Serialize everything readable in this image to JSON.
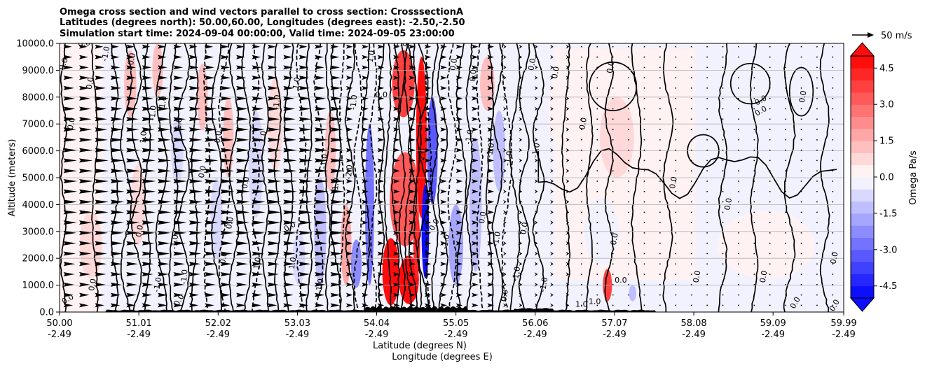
{
  "chart_data": {
    "type": "heatmap",
    "title_lines": [
      "Omega cross section and wind vectors parallel to cross section: CrosssectionA",
      "Latitudes (degrees north): 50.00,60.00, Longitudes (degrees east): -2.50,-2.50",
      "Simulation start time: 2024-09-04 00:00:00, Valid time: 2024-09-05 23:00:00"
    ],
    "ylabel": "Altitude (meters)",
    "xlabel_lines": [
      "Latitude (degrees N)",
      "Longitude (degrees E)"
    ],
    "xlim": [
      50.0,
      59.99
    ],
    "ylim": [
      0,
      10000
    ],
    "y_ticks": [
      {
        "value": 0,
        "label": "0.0"
      },
      {
        "value": 1000,
        "label": "1000.0"
      },
      {
        "value": 2000,
        "label": "2000.0"
      },
      {
        "value": 3000,
        "label": "3000.0"
      },
      {
        "value": 4000,
        "label": "4000.0"
      },
      {
        "value": 5000,
        "label": "5000.0"
      },
      {
        "value": 6000,
        "label": "6000.0"
      },
      {
        "value": 7000,
        "label": "7000.0"
      },
      {
        "value": 8000,
        "label": "8000.0"
      },
      {
        "value": 9000,
        "label": "9000.0"
      },
      {
        "value": 10000,
        "label": "10000.0"
      }
    ],
    "x_ticks": [
      {
        "value": 50.0,
        "lat": "50.00",
        "lon": "-2.49"
      },
      {
        "value": 51.01,
        "lat": "51.01",
        "lon": "-2.49"
      },
      {
        "value": 52.02,
        "lat": "52.02",
        "lon": "-2.49"
      },
      {
        "value": 53.03,
        "lat": "53.03",
        "lon": "-2.49"
      },
      {
        "value": 54.04,
        "lat": "54.04",
        "lon": "-2.49"
      },
      {
        "value": 55.05,
        "lat": "55.05",
        "lon": "-2.49"
      },
      {
        "value": 56.06,
        "lat": "56.06",
        "lon": "-2.49"
      },
      {
        "value": 57.07,
        "lat": "57.07",
        "lon": "-2.49"
      },
      {
        "value": 58.08,
        "lat": "58.08",
        "lon": "-2.49"
      },
      {
        "value": 59.09,
        "lat": "59.09",
        "lon": "-2.49"
      },
      {
        "value": 59.99,
        "lat": "59.99",
        "lon": "-2.49"
      }
    ],
    "horizontal_grid": true,
    "colorbar": {
      "label": "Omega Pa/s",
      "range": [
        -5.0,
        5.0
      ],
      "levels": 20,
      "extend": "both",
      "ticks": [
        "-4.5",
        "-3.0",
        "-1.5",
        "0.0",
        "1.5",
        "3.0",
        "4.5"
      ],
      "tick_values": [
        -4.5,
        -3.0,
        -1.5,
        0.0,
        1.5,
        3.0,
        4.5
      ]
    },
    "quiver_key": {
      "label": "50 m/s",
      "speed": 50
    },
    "omega_blobs": [
      {
        "lat": 54.45,
        "alt": 1200,
        "w": 0.22,
        "h": 1800,
        "v": 5.0
      },
      {
        "lat": 54.22,
        "alt": 1500,
        "w": 0.18,
        "h": 2500,
        "v": 4.5
      },
      {
        "lat": 54.4,
        "alt": 4200,
        "w": 0.35,
        "h": 3500,
        "v": 3.2
      },
      {
        "lat": 54.38,
        "alt": 8500,
        "w": 0.25,
        "h": 2500,
        "v": 3.5
      },
      {
        "lat": 54.61,
        "alt": 6500,
        "w": 0.1,
        "h": 6000,
        "v": 4.5
      },
      {
        "lat": 54.55,
        "alt": 2500,
        "w": 0.05,
        "h": 2500,
        "v": 4.0
      },
      {
        "lat": 54.66,
        "alt": 3000,
        "w": 0.06,
        "h": 3500,
        "v": -5.0
      },
      {
        "lat": 54.75,
        "alt": 6000,
        "w": 0.1,
        "h": 4000,
        "v": -3.5
      },
      {
        "lat": 53.95,
        "alt": 4000,
        "w": 0.08,
        "h": 6000,
        "v": -3.0
      },
      {
        "lat": 53.78,
        "alt": 1800,
        "w": 0.1,
        "h": 1800,
        "v": -2.2
      },
      {
        "lat": 53.65,
        "alt": 2500,
        "w": 0.1,
        "h": 3000,
        "v": 1.8
      },
      {
        "lat": 53.32,
        "alt": 3000,
        "w": 0.12,
        "h": 4000,
        "v": -1.4
      },
      {
        "lat": 53.45,
        "alt": 6000,
        "w": 0.1,
        "h": 3000,
        "v": 1.2
      },
      {
        "lat": 55.05,
        "alt": 2500,
        "w": 0.15,
        "h": 3000,
        "v": -1.8
      },
      {
        "lat": 55.3,
        "alt": 4000,
        "w": 0.12,
        "h": 5000,
        "v": -1.2
      },
      {
        "lat": 55.6,
        "alt": 6000,
        "w": 0.12,
        "h": 3000,
        "v": -1.1
      },
      {
        "lat": 55.45,
        "alt": 8500,
        "w": 0.15,
        "h": 2000,
        "v": 1.3
      },
      {
        "lat": 50.9,
        "alt": 8500,
        "w": 0.12,
        "h": 2500,
        "v": 1.4
      },
      {
        "lat": 51.0,
        "alt": 4000,
        "w": 0.15,
        "h": 3000,
        "v": 0.8
      },
      {
        "lat": 51.25,
        "alt": 9000,
        "w": 0.1,
        "h": 2000,
        "v": 1.2
      },
      {
        "lat": 51.5,
        "alt": 6000,
        "w": 0.12,
        "h": 2500,
        "v": -0.9
      },
      {
        "lat": 51.82,
        "alt": 8000,
        "w": 0.1,
        "h": 2500,
        "v": 1.2
      },
      {
        "lat": 52.0,
        "alt": 3500,
        "w": 0.12,
        "h": 3000,
        "v": -0.9
      },
      {
        "lat": 52.15,
        "alt": 6500,
        "w": 0.1,
        "h": 3000,
        "v": 1.0
      },
      {
        "lat": 52.5,
        "alt": 5500,
        "w": 0.15,
        "h": 4000,
        "v": -1.0
      },
      {
        "lat": 52.75,
        "alt": 7000,
        "w": 0.15,
        "h": 3500,
        "v": 0.9
      },
      {
        "lat": 53.05,
        "alt": 2000,
        "w": 0.12,
        "h": 2000,
        "v": -0.8
      },
      {
        "lat": 50.4,
        "alt": 2500,
        "w": 0.25,
        "h": 2500,
        "v": 0.5
      },
      {
        "lat": 56.4,
        "alt": 7500,
        "w": 0.3,
        "h": 3000,
        "v": 0.4
      },
      {
        "lat": 57.1,
        "alt": 6500,
        "w": 0.4,
        "h": 3000,
        "v": 0.5
      },
      {
        "lat": 57.7,
        "alt": 4500,
        "w": 0.25,
        "h": 5000,
        "v": 0.4
      },
      {
        "lat": 56.98,
        "alt": 1000,
        "w": 0.08,
        "h": 1200,
        "v": 3.5
      },
      {
        "lat": 57.3,
        "alt": 700,
        "w": 0.06,
        "h": 600,
        "v": -1.5
      },
      {
        "lat": 58.5,
        "alt": 8000,
        "w": 0.8,
        "h": 3000,
        "v": -0.3
      },
      {
        "lat": 59.4,
        "alt": 6500,
        "w": 0.6,
        "h": 3000,
        "v": -0.3
      },
      {
        "lat": 59.0,
        "alt": 2500,
        "w": 1.2,
        "h": 2500,
        "v": 0.2
      },
      {
        "lat": 56.9,
        "alt": 3000,
        "w": 0.4,
        "h": 2500,
        "v": -0.4
      }
    ],
    "contours": [
      {
        "lat": 50.05,
        "dashed": false
      },
      {
        "lat": 50.45,
        "dashed": false
      },
      {
        "lat": 50.7,
        "dashed": false
      },
      {
        "lat": 50.85,
        "dashed": false
      },
      {
        "lat": 50.98,
        "dashed": false
      },
      {
        "lat": 51.12,
        "dashed": false
      },
      {
        "lat": 51.3,
        "dashed": false
      },
      {
        "lat": 51.45,
        "dashed": false
      },
      {
        "lat": 51.58,
        "dashed": false
      },
      {
        "lat": 51.72,
        "dashed": false
      },
      {
        "lat": 51.88,
        "dashed": true
      },
      {
        "lat": 52.0,
        "dashed": false
      },
      {
        "lat": 52.1,
        "dashed": true
      },
      {
        "lat": 52.22,
        "dashed": false
      },
      {
        "lat": 52.38,
        "dashed": false
      },
      {
        "lat": 52.5,
        "dashed": true
      },
      {
        "lat": 52.62,
        "dashed": false
      },
      {
        "lat": 52.78,
        "dashed": false
      },
      {
        "lat": 52.92,
        "dashed": false
      },
      {
        "lat": 53.08,
        "dashed": true
      },
      {
        "lat": 53.18,
        "dashed": false
      },
      {
        "lat": 53.3,
        "dashed": true
      },
      {
        "lat": 53.42,
        "dashed": false
      },
      {
        "lat": 53.52,
        "dashed": false
      },
      {
        "lat": 53.6,
        "dashed": true
      },
      {
        "lat": 53.7,
        "dashed": false
      },
      {
        "lat": 53.8,
        "dashed": true
      },
      {
        "lat": 53.9,
        "dashed": false
      },
      {
        "lat": 54.0,
        "dashed": true
      },
      {
        "lat": 54.1,
        "dashed": false
      },
      {
        "lat": 54.18,
        "dashed": false
      },
      {
        "lat": 54.28,
        "dashed": false
      },
      {
        "lat": 54.36,
        "dashed": false
      },
      {
        "lat": 54.44,
        "dashed": false
      },
      {
        "lat": 54.5,
        "dashed": false
      },
      {
        "lat": 54.56,
        "dashed": false
      },
      {
        "lat": 54.63,
        "dashed": false
      },
      {
        "lat": 54.7,
        "dashed": true
      },
      {
        "lat": 54.78,
        "dashed": false
      },
      {
        "lat": 54.88,
        "dashed": false
      },
      {
        "lat": 55.0,
        "dashed": true
      },
      {
        "lat": 55.12,
        "dashed": false
      },
      {
        "lat": 55.22,
        "dashed": false
      },
      {
        "lat": 55.35,
        "dashed": true
      },
      {
        "lat": 55.48,
        "dashed": false
      },
      {
        "lat": 55.58,
        "dashed": false
      },
      {
        "lat": 55.7,
        "dashed": true
      },
      {
        "lat": 55.8,
        "dashed": false
      },
      {
        "lat": 55.92,
        "dashed": false
      },
      {
        "lat": 56.1,
        "dashed": false
      },
      {
        "lat": 56.45,
        "dashed": false
      },
      {
        "lat": 56.75,
        "dashed": false
      },
      {
        "lat": 57.0,
        "dashed": false
      },
      {
        "lat": 57.35,
        "dashed": false
      },
      {
        "lat": 57.75,
        "dashed": false
      },
      {
        "lat": 58.45,
        "dashed": false
      },
      {
        "lat": 58.85,
        "dashed": false
      },
      {
        "lat": 59.3,
        "dashed": false
      },
      {
        "lat": 59.75,
        "dashed": false
      }
    ],
    "contour_labels": [
      {
        "lat": 50.08,
        "alt": 9200,
        "text": "0.0",
        "rot": -70
      },
      {
        "lat": 50.18,
        "alt": 7000,
        "text": "0.0",
        "rot": -80
      },
      {
        "lat": 50.12,
        "alt": 400,
        "text": "0.0",
        "rot": -30
      },
      {
        "lat": 50.32,
        "alt": 9900,
        "text": "0.0",
        "rot": -10
      },
      {
        "lat": 50.42,
        "alt": 8500,
        "text": "0.0",
        "rot": -80
      },
      {
        "lat": 50.62,
        "alt": 9600,
        "text": "-1.0",
        "rot": -80
      },
      {
        "lat": 50.95,
        "alt": 9400,
        "text": "0.0",
        "rot": -80
      },
      {
        "lat": 51.22,
        "alt": 7400,
        "text": "-1.0",
        "rot": -85
      },
      {
        "lat": 51.1,
        "alt": 6500,
        "text": "1.0",
        "rot": -85
      },
      {
        "lat": 51.35,
        "alt": 7800,
        "text": "1.0",
        "rot": -80
      },
      {
        "lat": 51.55,
        "alt": 7000,
        "text": "1.0",
        "rot": -85
      },
      {
        "lat": 51.85,
        "alt": 5200,
        "text": "0.0",
        "rot": -80
      },
      {
        "lat": 52.05,
        "alt": 6500,
        "text": "0.0",
        "rot": -80
      },
      {
        "lat": 51.62,
        "alt": 1300,
        "text": "-1.0",
        "rot": -85
      },
      {
        "lat": 51.28,
        "alt": 1000,
        "text": "-1.0",
        "rot": -80
      },
      {
        "lat": 51.5,
        "alt": 2600,
        "text": "-1.0",
        "rot": -85
      },
      {
        "lat": 51.05,
        "alt": 3000,
        "text": "0.0",
        "rot": -80
      },
      {
        "lat": 50.45,
        "alt": 1000,
        "text": "0.0",
        "rot": -80
      },
      {
        "lat": 51.55,
        "alt": 400,
        "text": "0.0",
        "rot": -60
      },
      {
        "lat": 52.2,
        "alt": 3300,
        "text": "0.0",
        "rot": -80
      },
      {
        "lat": 52.4,
        "alt": 4800,
        "text": "0.0",
        "rot": -80
      },
      {
        "lat": 52.12,
        "alt": 2000,
        "text": "0.0",
        "rot": -80
      },
      {
        "lat": 52.55,
        "alt": 1800,
        "text": "1.0",
        "rot": -80
      },
      {
        "lat": 52.62,
        "alt": 6500,
        "text": "1.0",
        "rot": -80
      },
      {
        "lat": 52.8,
        "alt": 7800,
        "text": "-1.0",
        "rot": -85
      },
      {
        "lat": 53.05,
        "alt": 8500,
        "text": "1.0",
        "rot": -80
      },
      {
        "lat": 52.95,
        "alt": 3100,
        "text": "0.0",
        "rot": -30
      },
      {
        "lat": 53.0,
        "alt": 1800,
        "text": "1.0",
        "rot": -80
      },
      {
        "lat": 53.35,
        "alt": 1000,
        "text": "1.0",
        "rot": -80
      },
      {
        "lat": 53.4,
        "alt": 5600,
        "text": "-1.0",
        "rot": -85
      },
      {
        "lat": 53.55,
        "alt": 4700,
        "text": "-1.0",
        "rot": -85
      },
      {
        "lat": 53.72,
        "alt": 5200,
        "text": "-2.0",
        "rot": -85
      },
      {
        "lat": 53.78,
        "alt": 7800,
        "text": "-1.0",
        "rot": -85
      },
      {
        "lat": 54.0,
        "alt": 9500,
        "text": "1.0",
        "rot": -80
      },
      {
        "lat": 54.1,
        "alt": 8000,
        "text": "0.0",
        "rot": 0
      },
      {
        "lat": 54.35,
        "alt": 9900,
        "text": "1.0",
        "rot": 0
      },
      {
        "lat": 54.65,
        "alt": 5800,
        "text": "-2.0",
        "rot": -80
      },
      {
        "lat": 54.75,
        "alt": 4300,
        "text": "1.0",
        "rot": -80
      },
      {
        "lat": 54.8,
        "alt": 3200,
        "text": "0.0",
        "rot": -60
      },
      {
        "lat": 54.95,
        "alt": 2600,
        "text": "-1.0",
        "rot": -80
      },
      {
        "lat": 55.05,
        "alt": 9200,
        "text": "0.0",
        "rot": -80
      },
      {
        "lat": 55.3,
        "alt": 8800,
        "text": "0.0",
        "rot": -85
      },
      {
        "lat": 55.25,
        "alt": 6500,
        "text": "-1.0",
        "rot": -80
      },
      {
        "lat": 55.42,
        "alt": 3500,
        "text": "0.0",
        "rot": -80
      },
      {
        "lat": 55.52,
        "alt": 6000,
        "text": "-1.0",
        "rot": -80
      },
      {
        "lat": 55.6,
        "alt": 2700,
        "text": "-1.0",
        "rot": -80
      },
      {
        "lat": 55.75,
        "alt": 5700,
        "text": "-1.0",
        "rot": -80
      },
      {
        "lat": 55.95,
        "alt": 3100,
        "text": "0.0",
        "rot": -80
      },
      {
        "lat": 55.85,
        "alt": 1400,
        "text": "-1.0",
        "rot": -80
      },
      {
        "lat": 55.7,
        "alt": 600,
        "text": "0.0",
        "rot": -80
      },
      {
        "lat": 56.2,
        "alt": 1000,
        "text": "-1.0",
        "rot": -80
      },
      {
        "lat": 56.1,
        "alt": 6000,
        "text": "-1.0",
        "rot": -80
      },
      {
        "lat": 56.05,
        "alt": 9200,
        "text": "0.0",
        "rot": -80
      },
      {
        "lat": 56.35,
        "alt": 8900,
        "text": "0.0",
        "rot": -80
      },
      {
        "lat": 56.65,
        "alt": 200,
        "text": "1.0",
        "rot": 0
      },
      {
        "lat": 56.7,
        "alt": 7000,
        "text": "0.0",
        "rot": -80
      },
      {
        "lat": 57.05,
        "alt": 9100,
        "text": "0.0",
        "rot": -80
      },
      {
        "lat": 57.1,
        "alt": 2700,
        "text": "0.0",
        "rot": -80
      },
      {
        "lat": 57.85,
        "alt": 4800,
        "text": "0.0",
        "rot": -80
      },
      {
        "lat": 58.15,
        "alt": 1300,
        "text": "0.0",
        "rot": -80
      },
      {
        "lat": 58.55,
        "alt": 4000,
        "text": "0.0",
        "rot": -80
      },
      {
        "lat": 58.95,
        "alt": 7400,
        "text": "0.0",
        "rot": -30
      },
      {
        "lat": 58.95,
        "alt": 7800,
        "text": "0.0",
        "rot": -30
      },
      {
        "lat": 59.5,
        "alt": 8000,
        "text": "0.0",
        "rot": -80
      },
      {
        "lat": 59.0,
        "alt": 1300,
        "text": "0.0",
        "rot": -80
      },
      {
        "lat": 59.4,
        "alt": 300,
        "text": "0.0",
        "rot": -60
      },
      {
        "lat": 59.9,
        "alt": 200,
        "text": "0.0",
        "rot": -60
      },
      {
        "lat": 59.9,
        "alt": 2000,
        "text": "0.0",
        "rot": -80
      },
      {
        "lat": 57.15,
        "alt": 1100,
        "text": "0.0",
        "rot": 0
      },
      {
        "lat": 56.8,
        "alt": 300,
        "text": "-1.0",
        "rot": 0
      }
    ]
  }
}
